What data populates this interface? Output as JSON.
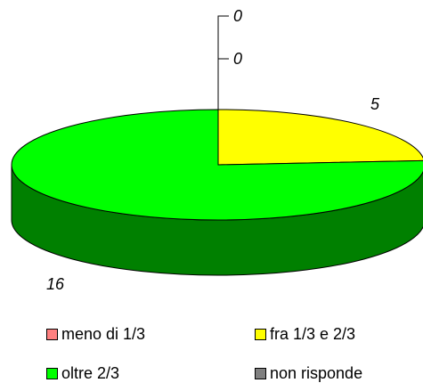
{
  "chart_data": {
    "type": "pie",
    "style": "3d",
    "title": "",
    "series": [
      {
        "name": "",
        "categories": [
          "meno di 1/3",
          "fra 1/3 e 2/3",
          "oltre 2/3",
          "non risponde"
        ],
        "values": [
          0,
          5,
          16,
          0
        ],
        "colors": [
          "#ff8080",
          "#ffff00",
          "#00ff00",
          "#808080"
        ],
        "side_colors": [
          "#a05050",
          "#a0a000",
          "#008000",
          "#505050"
        ],
        "data_labels": [
          "0",
          "5",
          "16",
          "0"
        ]
      }
    ],
    "legend": {
      "placement": "bottom",
      "entries": [
        "meno di 1/3",
        "fra 1/3 e 2/3",
        "oltre 2/3",
        "non risponde"
      ]
    }
  }
}
